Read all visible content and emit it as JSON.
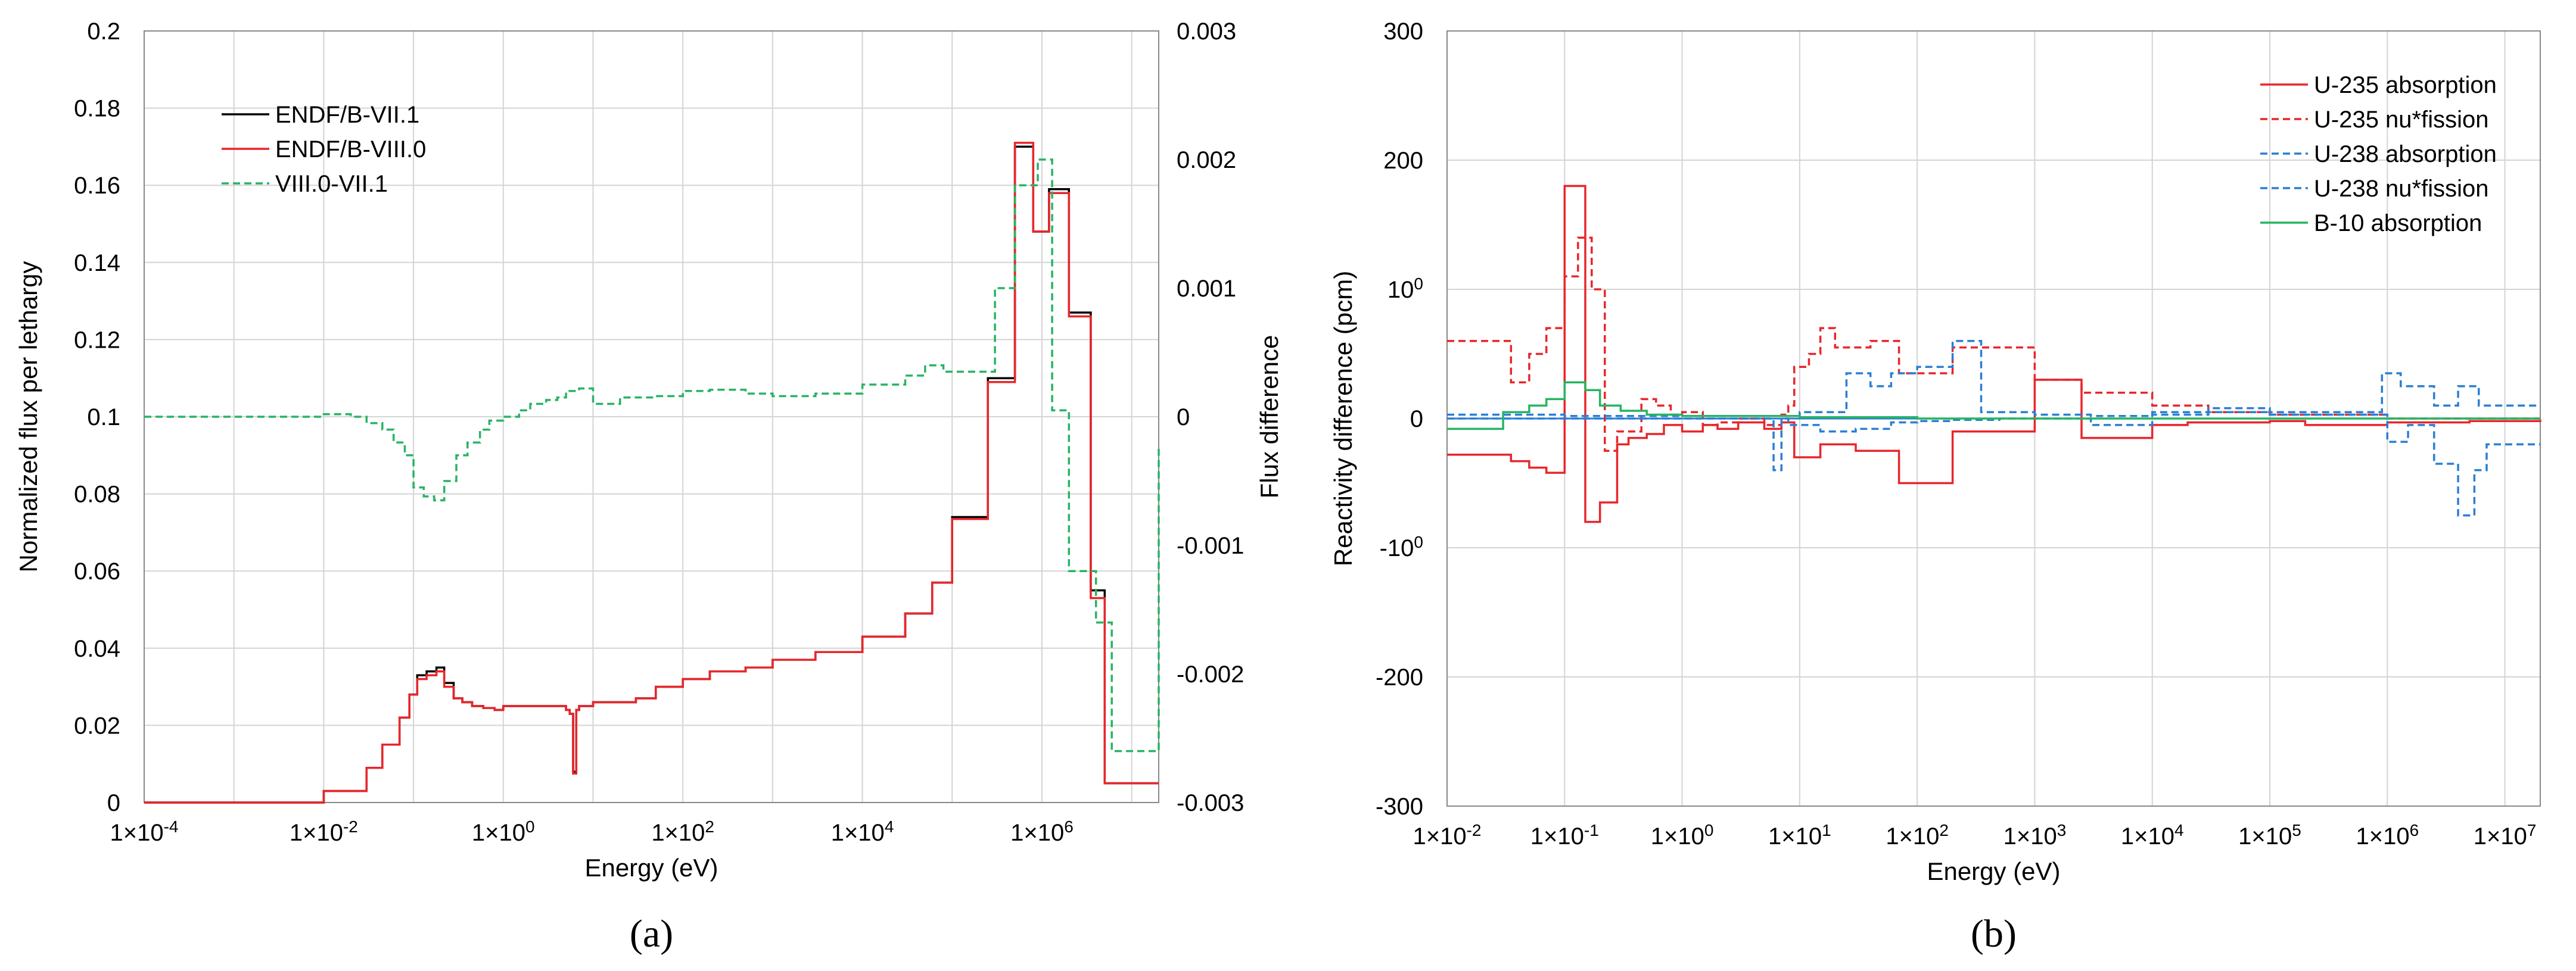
{
  "chart_data": [
    {
      "type": "line",
      "panel": "(a)",
      "panel_label": "(a)",
      "xlabel": "Energy (eV)",
      "ylabel": "Normalized flux per lethargy",
      "y2label": "Flux difference",
      "x_scale": "log",
      "xlim": [
        0.0001,
        20000000
      ],
      "ylim": [
        0,
        0.2
      ],
      "y2lim": [
        -0.003,
        0.003
      ],
      "grid": true,
      "legend_position": "top-left",
      "x_ticks": [
        {
          "v": 0.0001,
          "label": "1×10-4"
        },
        {
          "v": 0.01,
          "label": "1×10-2"
        },
        {
          "v": 1,
          "label": "1×100"
        },
        {
          "v": 100,
          "label": "1×102"
        },
        {
          "v": 10000,
          "label": "1×104"
        },
        {
          "v": 1000000,
          "label": "1×106"
        }
      ],
      "x_gridlines": [
        0.0001,
        0.001,
        0.01,
        0.1,
        1,
        10,
        100,
        1000,
        10000,
        100000,
        1000000,
        10000000
      ],
      "y_ticks": [
        {
          "v": 0,
          "label": "0"
        },
        {
          "v": 0.02,
          "label": "0.02"
        },
        {
          "v": 0.04,
          "label": "0.04"
        },
        {
          "v": 0.06,
          "label": "0.06"
        },
        {
          "v": 0.08,
          "label": "0.08"
        },
        {
          "v": 0.1,
          "label": "0.1"
        },
        {
          "v": 0.12,
          "label": "0.12"
        },
        {
          "v": 0.14,
          "label": "0.14"
        },
        {
          "v": 0.16,
          "label": "0.16"
        },
        {
          "v": 0.18,
          "label": "0.18"
        },
        {
          "v": 0.2,
          "label": "0.2"
        }
      ],
      "y2_ticks": [
        {
          "v": -0.003,
          "label": "-0.003"
        },
        {
          "v": -0.002,
          "label": "-0.002"
        },
        {
          "v": -0.001,
          "label": "-0.001"
        },
        {
          "v": 0,
          "label": "0"
        },
        {
          "v": 0.001,
          "label": "0.001"
        },
        {
          "v": 0.002,
          "label": "0.002"
        },
        {
          "v": 0.003,
          "label": "0.003"
        }
      ],
      "series": [
        {
          "name": "ENDF/B-VII.1",
          "color": "#000000",
          "dash": "solid",
          "axis": "left",
          "x": [
            0.0001,
            0.01,
            0.03,
            0.045,
            0.07,
            0.09,
            0.11,
            0.14,
            0.18,
            0.22,
            0.28,
            0.35,
            0.45,
            0.6,
            0.8,
            1,
            1.5,
            2,
            3,
            4,
            5,
            5.5,
            6,
            6.5,
            7,
            10,
            15,
            20,
            30,
            50,
            100,
            200,
            500,
            1000,
            3000,
            10000,
            30000,
            60000,
            100000,
            250000,
            500000,
            800000,
            1200000,
            2000000,
            3500000,
            5000000,
            10000000,
            20000000
          ],
          "y": [
            0,
            0.003,
            0.009,
            0.015,
            0.022,
            0.028,
            0.033,
            0.034,
            0.035,
            0.031,
            0.027,
            0.026,
            0.025,
            0.0245,
            0.024,
            0.025,
            0.025,
            0.025,
            0.025,
            0.025,
            0.024,
            0.023,
            0.008,
            0.024,
            0.025,
            0.026,
            0.026,
            0.026,
            0.027,
            0.03,
            0.032,
            0.034,
            0.035,
            0.037,
            0.039,
            0.043,
            0.049,
            0.057,
            0.074,
            0.11,
            0.17,
            0.148,
            0.159,
            0.127,
            0.055,
            0.005,
            0.005,
            0.005
          ]
        },
        {
          "name": "ENDF/B-VIII.0",
          "color": "#e8262b",
          "dash": "solid",
          "axis": "left",
          "x": [
            0.0001,
            0.01,
            0.03,
            0.045,
            0.07,
            0.09,
            0.11,
            0.14,
            0.18,
            0.22,
            0.28,
            0.35,
            0.45,
            0.6,
            0.8,
            1,
            1.5,
            2,
            3,
            4,
            5,
            5.5,
            6,
            6.5,
            7,
            10,
            15,
            20,
            30,
            50,
            100,
            200,
            500,
            1000,
            3000,
            10000,
            30000,
            60000,
            100000,
            250000,
            500000,
            800000,
            1200000,
            2000000,
            3500000,
            5000000,
            10000000,
            20000000
          ],
          "y": [
            0,
            0.003,
            0.009,
            0.015,
            0.022,
            0.028,
            0.032,
            0.033,
            0.034,
            0.03,
            0.027,
            0.026,
            0.025,
            0.0245,
            0.024,
            0.025,
            0.025,
            0.025,
            0.025,
            0.025,
            0.024,
            0.023,
            0.0075,
            0.024,
            0.025,
            0.026,
            0.026,
            0.026,
            0.027,
            0.03,
            0.032,
            0.034,
            0.035,
            0.037,
            0.039,
            0.043,
            0.049,
            0.057,
            0.0735,
            0.109,
            0.171,
            0.148,
            0.158,
            0.126,
            0.053,
            0.005,
            0.005,
            0.005
          ]
        },
        {
          "name": "VIII.0-VII.1",
          "color": "#27b463",
          "dash": "dashed",
          "axis": "right",
          "x": [
            0.0001,
            0.01,
            0.02,
            0.03,
            0.045,
            0.06,
            0.08,
            0.1,
            0.13,
            0.17,
            0.22,
            0.3,
            0.4,
            0.55,
            0.7,
            1,
            1.5,
            2,
            3,
            4,
            5,
            7,
            10,
            20,
            50,
            100,
            200,
            500,
            1000,
            3000,
            10000,
            30000,
            50000,
            80000,
            200000,
            300000,
            500000,
            900000,
            1300000,
            2000000,
            4000000,
            6000000,
            20000000
          ],
          "y": [
            0,
            2e-05,
            0,
            -5e-05,
            -0.0001,
            -0.0002,
            -0.0003,
            -0.00055,
            -0.00062,
            -0.00065,
            -0.0005,
            -0.0003,
            -0.0002,
            -0.0001,
            -3e-05,
            0,
            5e-05,
            0.0001,
            0.00013,
            0.00015,
            0.0002,
            0.00022,
            0.0001,
            0.00015,
            0.00016,
            0.0002,
            0.00021,
            0.00018,
            0.00016,
            0.00018,
            0.00025,
            0.00032,
            0.0004,
            0.00035,
            0.00035,
            0.001,
            0.0018,
            0.002,
            5e-05,
            -0.0012,
            -0.0016,
            -0.0026,
            -0.00025
          ]
        }
      ]
    },
    {
      "type": "line",
      "panel": "(b)",
      "panel_label": "(b)",
      "xlabel": "Energy (eV)",
      "ylabel": "Reactivity difference (pcm)",
      "x_scale": "log",
      "xlim": [
        0.01,
        20000000
      ],
      "ylim": [
        -300,
        300
      ],
      "grid": true,
      "legend_position": "top-right",
      "x_ticks": [
        {
          "v": 0.01,
          "label": "1×10-2"
        },
        {
          "v": 0.1,
          "label": "1×10-1"
        },
        {
          "v": 1,
          "label": "1×100"
        },
        {
          "v": 10,
          "label": "1×101"
        },
        {
          "v": 100,
          "label": "1×102"
        },
        {
          "v": 1000,
          "label": "1×103"
        },
        {
          "v": 10000,
          "label": "1×104"
        },
        {
          "v": 100000,
          "label": "1×105"
        },
        {
          "v": 1000000,
          "label": "1×106"
        },
        {
          "v": 10000000,
          "label": "1×107"
        }
      ],
      "y_ticks": [
        {
          "v": -300,
          "label": "-300"
        },
        {
          "v": -200,
          "label": "-200"
        },
        {
          "v": -100,
          "label": "-100"
        },
        {
          "v": 0,
          "label": "0"
        },
        {
          "v": 100,
          "label": "100"
        },
        {
          "v": 200,
          "label": "200"
        },
        {
          "v": 300,
          "label": "300"
        }
      ],
      "series": [
        {
          "name": "U-235 absorption",
          "color": "#e8262b",
          "dash": "solid",
          "x": [
            0.01,
            0.035,
            0.05,
            0.07,
            0.1,
            0.15,
            0.2,
            0.28,
            0.35,
            0.5,
            0.7,
            1,
            1.5,
            2,
            3,
            5,
            7,
            9,
            15,
            30,
            70,
            200,
            1000,
            2500,
            10000,
            20000,
            100000,
            200000,
            1000000,
            5000000,
            20000000
          ],
          "y": [
            -28,
            -33,
            -38,
            -42,
            180,
            -80,
            -65,
            -20,
            -15,
            -12,
            -5,
            -10,
            -5,
            -8,
            -3,
            -8,
            -3,
            -30,
            -20,
            -25,
            -50,
            -10,
            30,
            -15,
            -5,
            -3,
            -2,
            -5,
            -3,
            -2,
            -1
          ]
        },
        {
          "name": "U-235 nu*fission",
          "color": "#e8262b",
          "dash": "dashed",
          "x": [
            0.01,
            0.035,
            0.05,
            0.07,
            0.1,
            0.13,
            0.17,
            0.22,
            0.28,
            0.45,
            0.6,
            0.8,
            1,
            1.5,
            2,
            3,
            5,
            7,
            8,
            9,
            12,
            15,
            20,
            40,
            70,
            200,
            1000,
            2500,
            10000,
            30000,
            100000,
            1000000,
            3000000,
            20000000
          ],
          "y": [
            60,
            28,
            50,
            70,
            110,
            140,
            100,
            -25,
            -10,
            15,
            10,
            3,
            5,
            -5,
            -3,
            0,
            -5,
            3,
            10,
            40,
            50,
            70,
            55,
            60,
            35,
            55,
            30,
            20,
            10,
            5,
            3,
            0,
            0,
            0
          ]
        },
        {
          "name": "U-238 absorption",
          "color": "#2a7fd3",
          "dash": "dashed",
          "x": [
            0.01,
            0.1,
            0.3,
            1,
            3,
            6,
            7,
            8,
            15,
            30,
            60,
            100,
            200,
            500,
            1000,
            3000,
            10000,
            30000,
            100000,
            1000000,
            1500000,
            2500000,
            4000000,
            5500000,
            7000000,
            20000000
          ],
          "y": [
            0,
            0,
            0,
            0,
            0,
            -40,
            0,
            -5,
            -10,
            -8,
            -3,
            -2,
            -1,
            0,
            0,
            -5,
            3,
            5,
            3,
            -18,
            -5,
            -35,
            -75,
            -40,
            -20,
            -20
          ]
        },
        {
          "name": "U-238 nu*fission",
          "color": "#2a7fd3",
          "dash": "dashed",
          "x": [
            0.01,
            0.1,
            1,
            5,
            10,
            25,
            40,
            60,
            100,
            200,
            350,
            1000,
            3000,
            10000,
            30000,
            100000,
            900000,
            1300000,
            2500000,
            4000000,
            6000000,
            20000000
          ],
          "y": [
            3,
            2,
            2,
            2,
            5,
            35,
            25,
            35,
            40,
            60,
            5,
            3,
            2,
            5,
            8,
            5,
            35,
            25,
            10,
            25,
            10,
            10
          ]
        },
        {
          "name": "B-10 absorption",
          "color": "#27b463",
          "dash": "solid",
          "x": [
            0.01,
            0.03,
            0.05,
            0.07,
            0.1,
            0.15,
            0.2,
            0.3,
            0.5,
            1,
            10,
            100,
            1000,
            10000,
            100000,
            1000000,
            20000000
          ],
          "y": [
            -8,
            5,
            10,
            15,
            28,
            22,
            10,
            6,
            3,
            2,
            1,
            0,
            0,
            0,
            0,
            0,
            0
          ]
        }
      ]
    }
  ]
}
